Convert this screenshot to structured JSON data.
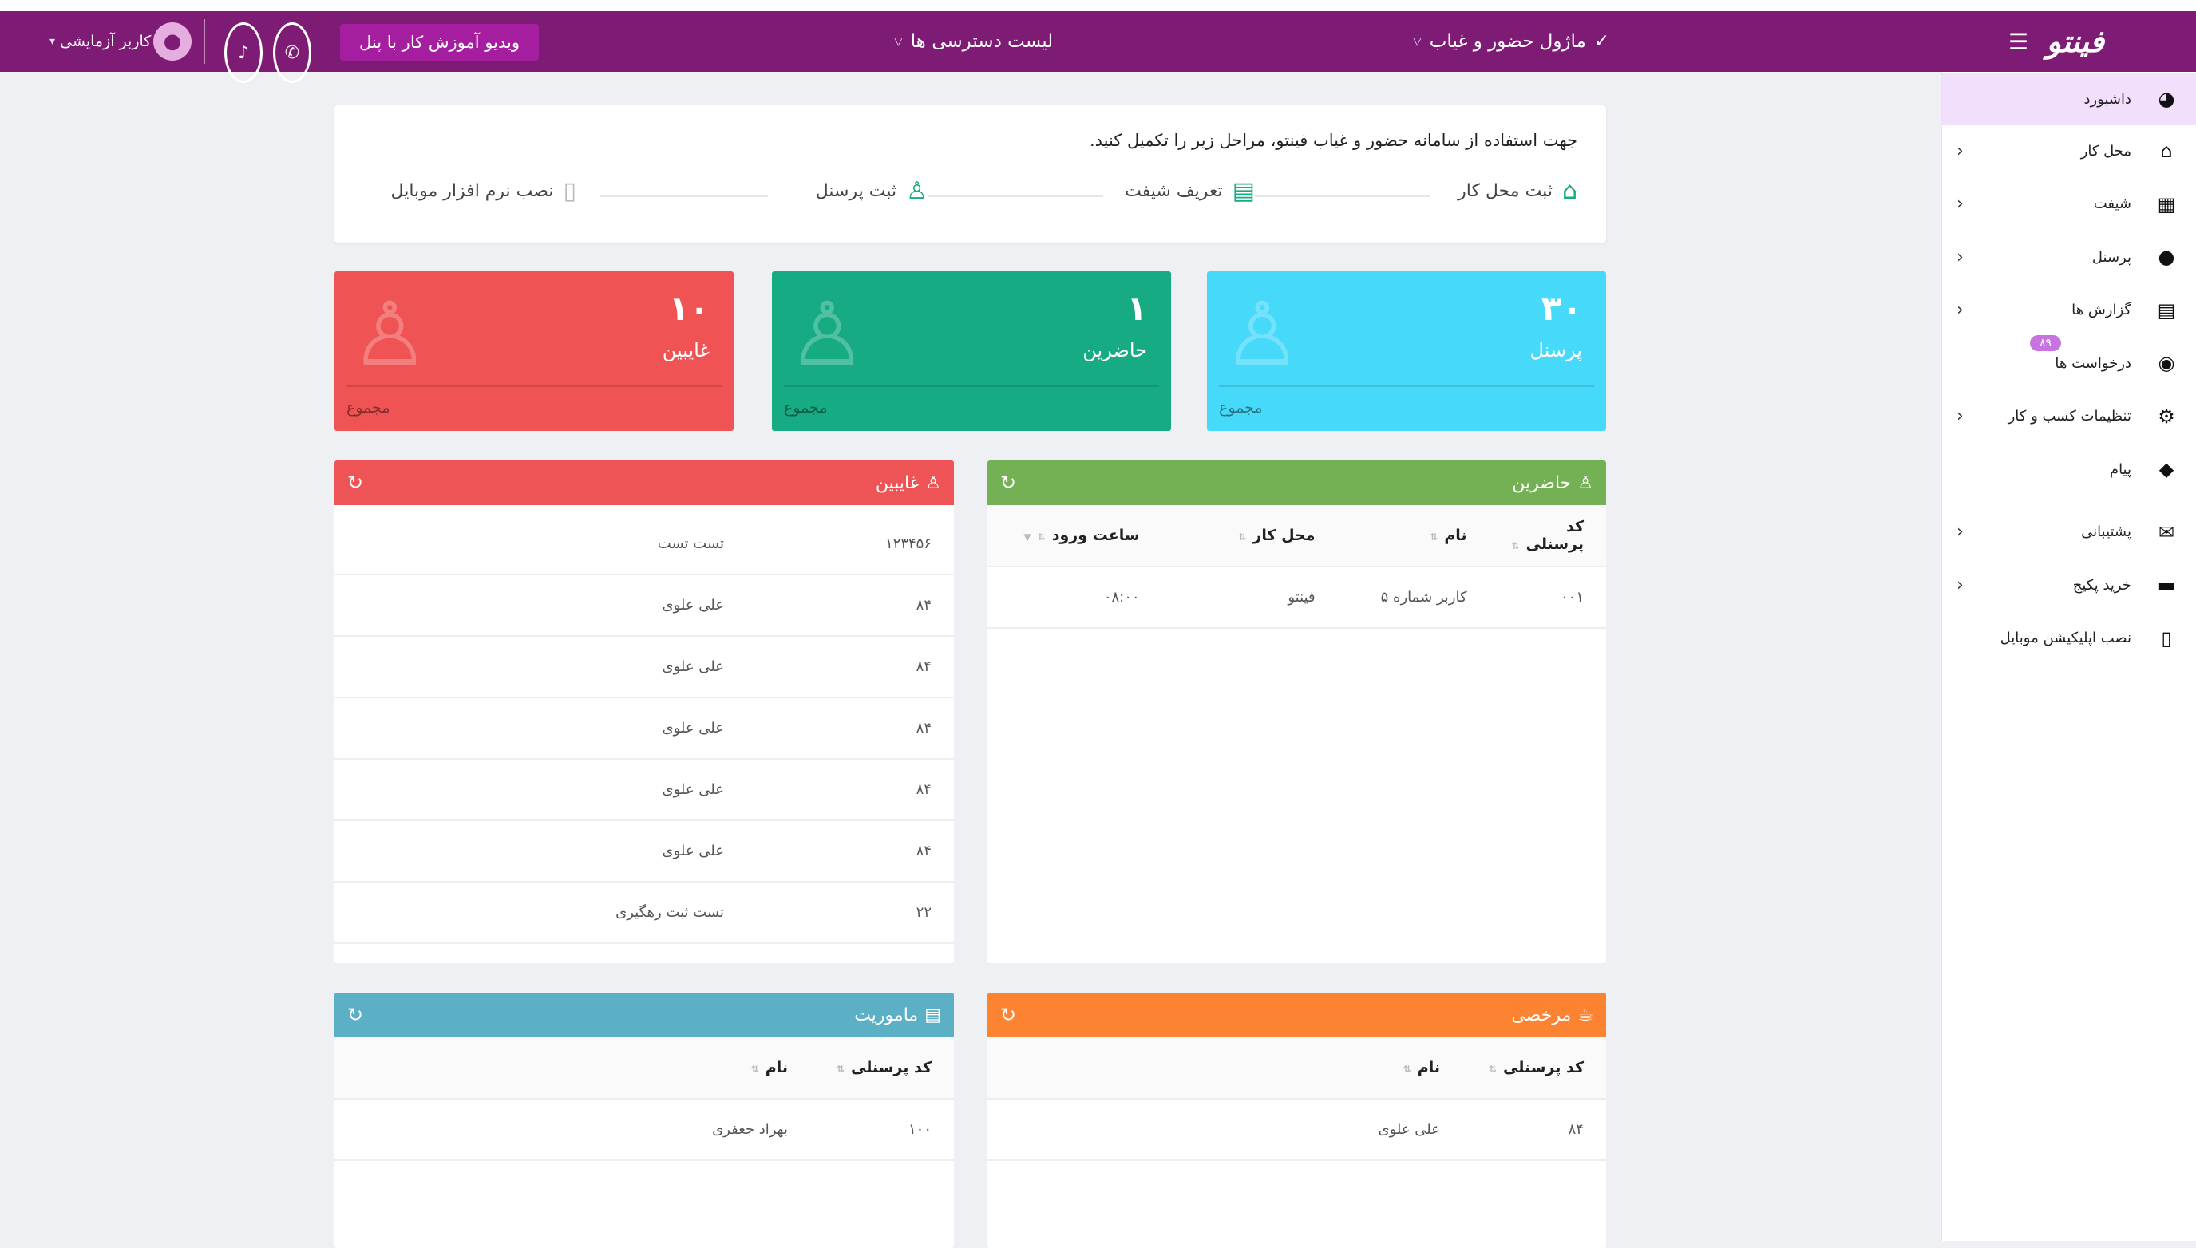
{
  "header": {
    "logo": "فینتو",
    "module": "ماژول حضور و غیاب",
    "access": "لیست دسترسی ها",
    "video_button": "ویدیو آموزش کار با پنل",
    "user": "کاربر آزمایشی",
    "brand_color": "#7e1b74"
  },
  "sidebar": {
    "items": [
      {
        "label": "داشبورد",
        "icon": "dashboard-icon",
        "glyph": "◕",
        "chevron": false,
        "active": true
      },
      {
        "label": "محل کار",
        "icon": "home-icon",
        "glyph": "⌂",
        "chevron": true
      },
      {
        "label": "شیفت",
        "icon": "calendar-icon",
        "glyph": "▦",
        "chevron": true
      },
      {
        "label": "پرسنل",
        "icon": "user-icon",
        "glyph": "●",
        "chevron": true
      },
      {
        "label": "گزارش ها",
        "icon": "report-icon",
        "glyph": "▤",
        "chevron": true
      },
      {
        "label": "درخواست ها",
        "icon": "stopwatch-icon",
        "glyph": "◉",
        "chevron": false,
        "badge": "۸۹"
      },
      {
        "label": "تنظیمات کسب و کار",
        "icon": "gears-icon",
        "glyph": "⚙",
        "chevron": true
      },
      {
        "label": "پیام",
        "icon": "sms-icon",
        "glyph": "◆",
        "chevron": false
      },
      {
        "label": "پشتیبانی",
        "icon": "envelope-icon",
        "glyph": "✉",
        "chevron": true
      },
      {
        "label": "خرید پکیج",
        "icon": "money-icon",
        "glyph": "▬",
        "chevron": true
      },
      {
        "label": "نصب اپلیکیشن موبایل",
        "icon": "mobile-icon",
        "glyph": "▯",
        "chevron": false
      }
    ]
  },
  "intro": {
    "text": "جهت استفاده از سامانه حضور و غیاب فینتو، مراحل زیر را تکمیل کنید.",
    "steps": [
      {
        "label": "ثبت محل کار",
        "icon": "home-outline-icon",
        "glyph": "⌂"
      },
      {
        "label": "تعریف شیفت",
        "icon": "shift-doc-icon",
        "glyph": "▤"
      },
      {
        "label": "ثبت پرسنل",
        "icon": "user-outline-icon",
        "glyph": "♙"
      },
      {
        "label": "نصب نرم افزار موبایل",
        "icon": "mobile-outline-icon",
        "glyph": "▯"
      }
    ]
  },
  "stats": [
    {
      "value": "۳۰",
      "label": "پرسنل",
      "footer": "مجموع",
      "color": "#47d9fa"
    },
    {
      "value": "۱",
      "label": "حاضرین",
      "footer": "مجموع",
      "color": "#17ab83"
    },
    {
      "value": "۱۰",
      "label": "غایبین",
      "footer": "مجموع",
      "color": "#ef5353"
    }
  ],
  "panels": {
    "present": {
      "title": "حاضرین",
      "color": "#74b054",
      "columns": [
        "کد پرسنلی",
        "نام",
        "محل کار",
        "ساعت ورود"
      ],
      "rows": [
        [
          "۰۰۱",
          "کاربر شماره ۵",
          "فینتو",
          "۰۸:۰۰"
        ]
      ]
    },
    "absent": {
      "title": "غایبین",
      "color": "#ee5455",
      "rows": [
        [
          "۱۲۳۴۵۶",
          "تست تست"
        ],
        [
          "۸۴",
          "علی علوی"
        ],
        [
          "۸۴",
          "علی علوی"
        ],
        [
          "۸۴",
          "علی علوی"
        ],
        [
          "۸۴",
          "علی علوی"
        ],
        [
          "۸۴",
          "علی علوی"
        ],
        [
          "۲۲",
          "تست ثبت رهگیری"
        ]
      ]
    },
    "leave": {
      "title": "مرخصی",
      "color": "#fb8332",
      "columns": [
        "کد پرسنلی",
        "نام"
      ],
      "rows": [
        [
          "۸۴",
          "علی علوی"
        ]
      ]
    },
    "mission": {
      "title": "ماموریت",
      "color": "#5bb0c5",
      "columns": [
        "کد پرسنلی",
        "نام"
      ],
      "rows": [
        [
          "۱۰۰",
          "بهراد جعفری"
        ]
      ]
    }
  }
}
